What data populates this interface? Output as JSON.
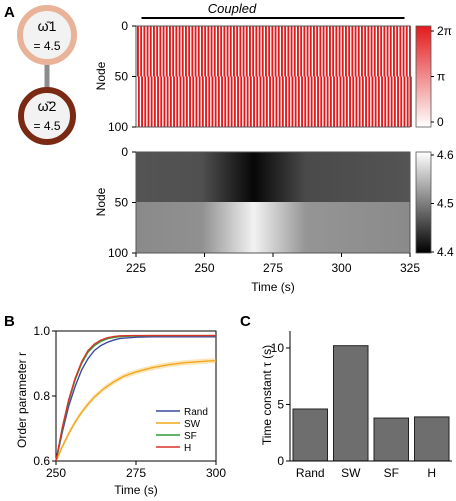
{
  "panels": {
    "a": "A",
    "b": "B",
    "c": "C"
  },
  "network": {
    "node1": {
      "label": "ω̄1",
      "value": "= 4.5",
      "color": "#e9b39a"
    },
    "node2": {
      "label": "ω̄2",
      "value": "= 4.5",
      "color": "#7a2a14"
    }
  },
  "coupled_label": "Coupled",
  "chart_data": [
    {
      "type": "heatmap",
      "name": "phase",
      "ylabel": "Node",
      "yticks": [
        "0",
        "50",
        "100"
      ],
      "colorbar": {
        "ticks": [
          "2π",
          "π",
          "0"
        ],
        "range": [
          "0",
          "2π"
        ],
        "colors": [
          "#ffffff",
          "#e31a1c"
        ]
      },
      "pattern": "alternating red and white vertical stripes across all nodes",
      "coupled_interval": [
        227,
        323
      ]
    },
    {
      "type": "heatmap",
      "name": "frequency",
      "ylabel": "Node",
      "yticks": [
        "0",
        "50",
        "100"
      ],
      "xlabel": "Time (s)",
      "xticks": [
        "225",
        "250",
        "275",
        "300",
        "325"
      ],
      "xlim": [
        225,
        325
      ],
      "colorbar": {
        "ticks": [
          "4.6",
          "4.5",
          "4.4"
        ],
        "range": [
          4.4,
          4.6
        ]
      },
      "groups": [
        {
          "nodes": "0-50",
          "baseline": 4.5,
          "extreme": 4.4,
          "extreme_time": 268
        },
        {
          "nodes": "50-100",
          "baseline": 4.5,
          "extreme": 4.6,
          "extreme_time": 268
        }
      ]
    },
    {
      "type": "line",
      "xlabel": "Time (s)",
      "ylabel": "Order parameter r",
      "xticks": [
        "250",
        "275",
        "300"
      ],
      "yticks": [
        "0.6",
        "0.8",
        "1.0"
      ],
      "xlim": [
        250,
        300
      ],
      "ylim": [
        0.6,
        1.0
      ],
      "legend_position": "bottom-right",
      "series": [
        {
          "name": "Rand",
          "color": "#3b4aa0",
          "x": [
            250,
            252,
            254,
            256,
            258,
            260,
            262,
            264,
            266,
            268,
            270,
            275,
            280,
            290,
            300
          ],
          "y": [
            0.6,
            0.69,
            0.77,
            0.83,
            0.88,
            0.915,
            0.94,
            0.955,
            0.965,
            0.972,
            0.977,
            0.981,
            0.982,
            0.982,
            0.982
          ]
        },
        {
          "name": "SW",
          "color": "#f2a81d",
          "x": [
            250,
            252,
            254,
            256,
            258,
            260,
            262,
            265,
            268,
            271,
            275,
            280,
            285,
            290,
            295,
            300
          ],
          "y": [
            0.6,
            0.645,
            0.685,
            0.72,
            0.75,
            0.775,
            0.797,
            0.823,
            0.843,
            0.86,
            0.874,
            0.887,
            0.896,
            0.902,
            0.906,
            0.909
          ]
        },
        {
          "name": "SF",
          "color": "#2e9c3a",
          "x": [
            250,
            252,
            254,
            256,
            258,
            260,
            262,
            264,
            266,
            268,
            270,
            275,
            280,
            290,
            300
          ],
          "y": [
            0.6,
            0.7,
            0.785,
            0.85,
            0.9,
            0.935,
            0.955,
            0.968,
            0.976,
            0.98,
            0.983,
            0.985,
            0.986,
            0.986,
            0.986
          ]
        },
        {
          "name": "H",
          "color": "#d93328",
          "x": [
            250,
            252,
            254,
            256,
            258,
            260,
            262,
            264,
            266,
            268,
            270,
            275,
            280,
            290,
            300
          ],
          "y": [
            0.6,
            0.705,
            0.79,
            0.855,
            0.905,
            0.94,
            0.96,
            0.972,
            0.979,
            0.983,
            0.985,
            0.986,
            0.986,
            0.986,
            0.986
          ]
        }
      ]
    },
    {
      "type": "bar",
      "ylabel": "Time constant τ (s)",
      "categories": [
        "Rand",
        "SW",
        "SF",
        "H"
      ],
      "values": [
        4.6,
        10.2,
        3.8,
        3.9
      ],
      "yticks": [
        "0",
        "5",
        "10"
      ],
      "ylim": [
        0,
        11.5
      ],
      "bar_color": "#6e6e6e"
    }
  ]
}
